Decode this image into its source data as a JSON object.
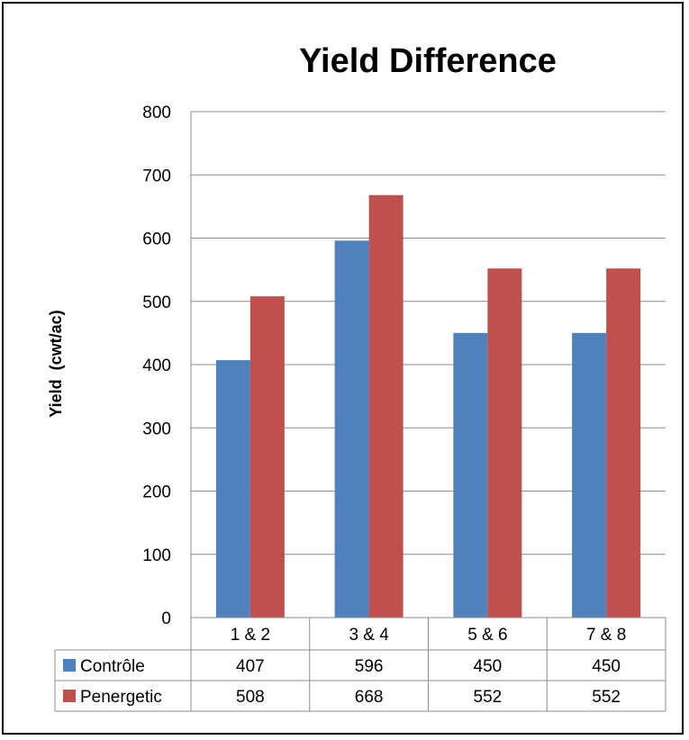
{
  "chart_data": {
    "type": "bar",
    "title": "Yield Difference",
    "xlabel": "",
    "ylabel": "Yield  (cwt/ac)",
    "categories": [
      "1 & 2",
      "3 & 4",
      "5 & 6",
      "7 & 8"
    ],
    "series": [
      {
        "name": "Contrôle",
        "values": [
          407,
          596,
          450,
          450
        ],
        "color": "#4f81bd"
      },
      {
        "name": "Penergetic",
        "values": [
          508,
          668,
          552,
          552
        ],
        "color": "#c0504d"
      }
    ],
    "ylim": [
      0,
      800
    ],
    "yticks": [
      "0",
      "100",
      "200",
      "300",
      "400",
      "500",
      "600",
      "700",
      "800"
    ],
    "grid": true,
    "legend": "data-table",
    "data_table": {
      "rows": [
        {
          "series": "Contrôle",
          "cells": [
            "407",
            "596",
            "450",
            "450"
          ]
        },
        {
          "series": "Penergetic",
          "cells": [
            "508",
            "668",
            "552",
            "552"
          ]
        }
      ]
    }
  }
}
